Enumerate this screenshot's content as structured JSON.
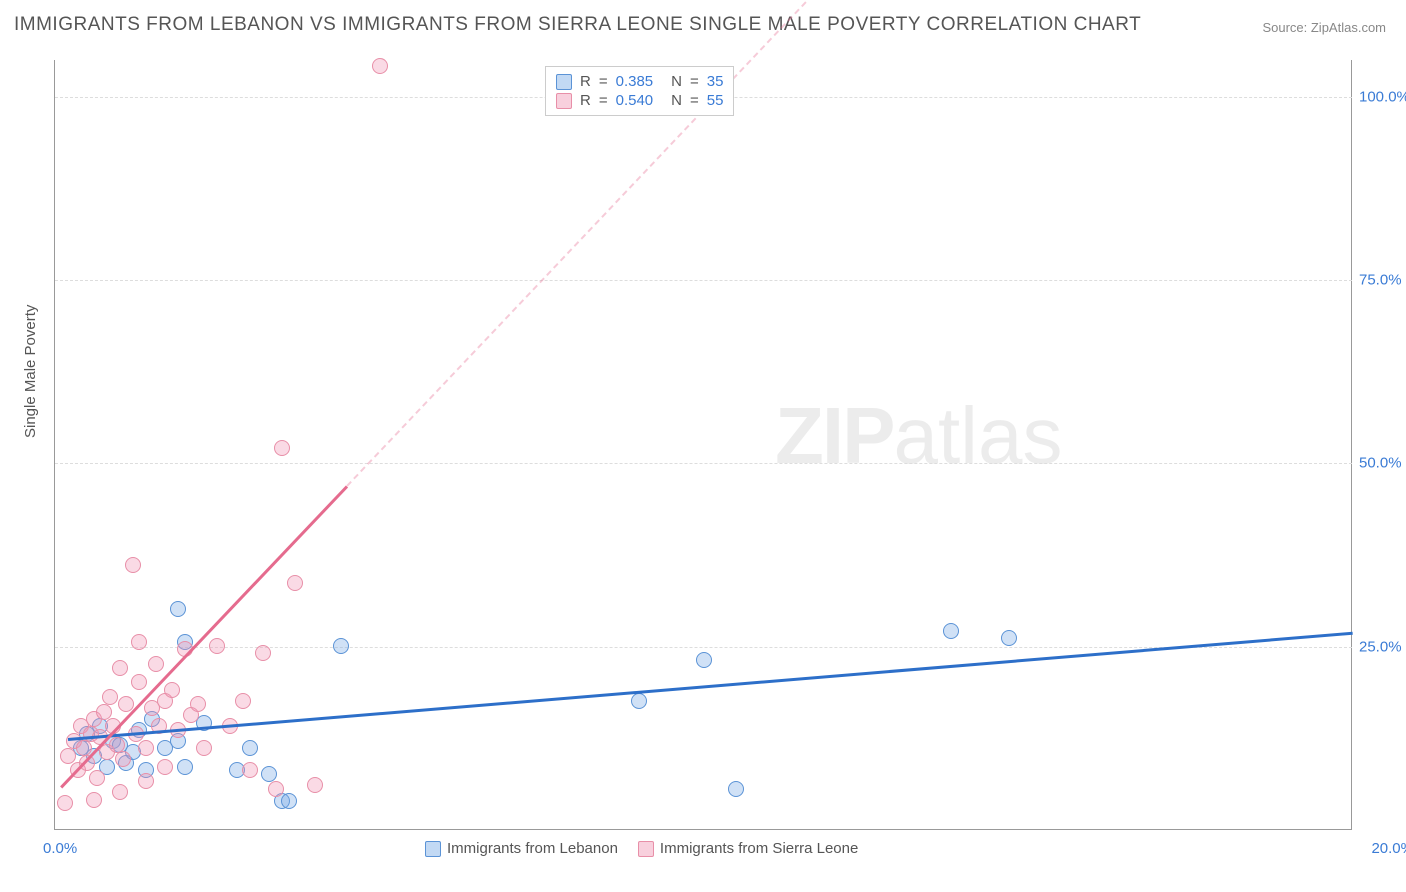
{
  "title": "IMMIGRANTS FROM LEBANON VS IMMIGRANTS FROM SIERRA LEONE SINGLE MALE POVERTY CORRELATION CHART",
  "source": "Source: ZipAtlas.com",
  "ylabel": "Single Male Poverty",
  "watermark_bold": "ZIP",
  "watermark_rest": "atlas",
  "chart": {
    "type": "scatter",
    "background_color": "#ffffff",
    "grid_color": "#dddddd",
    "axis_color": "#999999",
    "xlim": [
      0,
      20
    ],
    "ylim": [
      0,
      105
    ],
    "xticks": [
      {
        "pos": 0,
        "label": "0.0%"
      },
      {
        "pos": 20,
        "label": "20.0%"
      }
    ],
    "yticks": [
      {
        "pos": 25,
        "label": "25.0%"
      },
      {
        "pos": 50,
        "label": "50.0%"
      },
      {
        "pos": 75,
        "label": "75.0%"
      },
      {
        "pos": 100,
        "label": "100.0%"
      }
    ],
    "series": [
      {
        "name": "Immigrants from Lebanon",
        "color_fill": "rgba(120,170,230,0.35)",
        "color_border": "#5b93d6",
        "trend_color": "#2d6fc9",
        "R": "0.385",
        "N": "35",
        "marker_radius_px": 8,
        "trend": {
          "x1": 0.2,
          "y1": 12.5,
          "x2": 20,
          "y2": 27,
          "dashed_extension": false
        },
        "points": [
          [
            0.4,
            11
          ],
          [
            0.5,
            13
          ],
          [
            0.6,
            10
          ],
          [
            0.7,
            14
          ],
          [
            0.8,
            8.5
          ],
          [
            0.9,
            12
          ],
          [
            1.0,
            11.5
          ],
          [
            1.1,
            9
          ],
          [
            1.2,
            10.5
          ],
          [
            1.3,
            13.5
          ],
          [
            1.4,
            8
          ],
          [
            1.5,
            15
          ],
          [
            1.7,
            11
          ],
          [
            1.9,
            30
          ],
          [
            2.0,
            25.5
          ],
          [
            1.9,
            12
          ],
          [
            2.0,
            8.5
          ],
          [
            2.3,
            14.5
          ],
          [
            2.8,
            8
          ],
          [
            3.0,
            11
          ],
          [
            3.3,
            7.5
          ],
          [
            3.5,
            3.8
          ],
          [
            3.6,
            3.8
          ],
          [
            4.4,
            25
          ],
          [
            9.0,
            17.5
          ],
          [
            10.0,
            23
          ],
          [
            10.5,
            5.5
          ],
          [
            13.8,
            27
          ],
          [
            14.7,
            26
          ]
        ]
      },
      {
        "name": "Immigrants from Sierra Leone",
        "color_fill": "rgba(240,150,180,0.35)",
        "color_border": "#e88fa8",
        "trend_color": "#e56b8e",
        "R": "0.540",
        "N": "55",
        "marker_radius_px": 8,
        "trend": {
          "x1": 0.1,
          "y1": 6,
          "x2": 4.5,
          "y2": 47,
          "dashed_extension": true,
          "dash_x2": 12,
          "dash_y2": 117
        },
        "points": [
          [
            0.2,
            10
          ],
          [
            0.3,
            12
          ],
          [
            0.35,
            8
          ],
          [
            0.4,
            14
          ],
          [
            0.45,
            11
          ],
          [
            0.5,
            9
          ],
          [
            0.55,
            13
          ],
          [
            0.6,
            15
          ],
          [
            0.65,
            7
          ],
          [
            0.7,
            12.5
          ],
          [
            0.75,
            16
          ],
          [
            0.8,
            10.5
          ],
          [
            0.85,
            18
          ],
          [
            0.9,
            14
          ],
          [
            0.95,
            11.5
          ],
          [
            1.0,
            22
          ],
          [
            1.05,
            9.5
          ],
          [
            1.1,
            17
          ],
          [
            1.2,
            36
          ],
          [
            1.25,
            13
          ],
          [
            1.3,
            25.5
          ],
          [
            1.3,
            20
          ],
          [
            1.4,
            11
          ],
          [
            1.5,
            16.5
          ],
          [
            1.55,
            22.5
          ],
          [
            1.6,
            14
          ],
          [
            1.7,
            8.5
          ],
          [
            1.7,
            17.5
          ],
          [
            1.8,
            19
          ],
          [
            1.9,
            13.5
          ],
          [
            2.0,
            24.5
          ],
          [
            2.1,
            15.5
          ],
          [
            2.2,
            17
          ],
          [
            2.3,
            11
          ],
          [
            2.5,
            25
          ],
          [
            2.7,
            14
          ],
          [
            2.9,
            17.5
          ],
          [
            3.0,
            8
          ],
          [
            3.2,
            24
          ],
          [
            3.4,
            5.5
          ],
          [
            3.5,
            52
          ],
          [
            3.7,
            33.5
          ],
          [
            4.0,
            6
          ],
          [
            0.15,
            3.5
          ],
          [
            0.6,
            4
          ],
          [
            1.0,
            5
          ],
          [
            1.4,
            6.5
          ],
          [
            5.0,
            104
          ]
        ]
      }
    ]
  },
  "legend_top": {
    "r_label": "R",
    "n_label": "N",
    "eq": "="
  },
  "legend_bottom": {
    "items": [
      "Immigrants from Lebanon",
      "Immigrants from Sierra Leone"
    ]
  }
}
